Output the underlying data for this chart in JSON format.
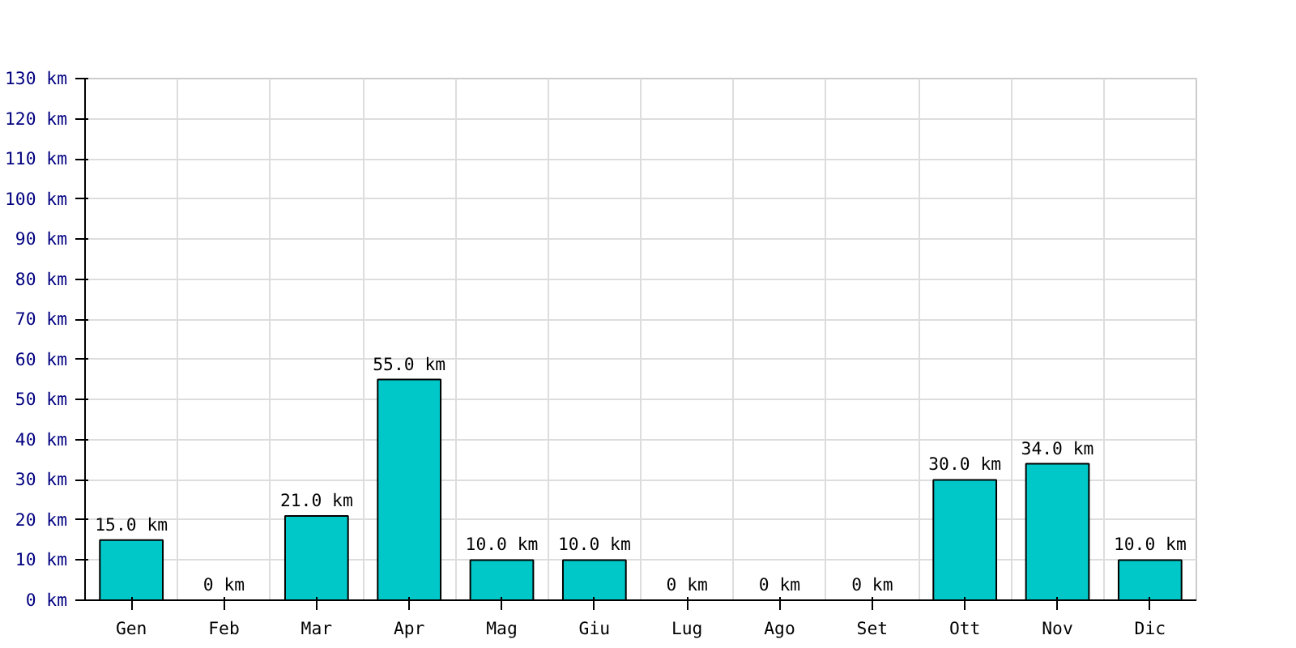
{
  "chart_data": {
    "type": "bar",
    "categories": [
      "Gen",
      "Feb",
      "Mar",
      "Apr",
      "Mag",
      "Giu",
      "Lug",
      "Ago",
      "Set",
      "Ott",
      "Nov",
      "Dic"
    ],
    "values": [
      15,
      0,
      21,
      55,
      10,
      10,
      0,
      0,
      0,
      30,
      34,
      10
    ],
    "value_labels": [
      "15.0 km",
      "0 km",
      "21.0 km",
      "55.0 km",
      "10.0 km",
      "10.0 km",
      "0 km",
      "0 km",
      "0 km",
      "30.0 km",
      "34.0 km",
      "10.0 km"
    ],
    "color": "#00c8c8",
    "ylim": [
      0,
      130
    ],
    "yticks": [
      {
        "value": 0,
        "label": "0 km"
      },
      {
        "value": 10,
        "label": "10 km"
      },
      {
        "value": 20,
        "label": "20 km"
      },
      {
        "value": 30,
        "label": "30 km"
      },
      {
        "value": 40,
        "label": "40 km"
      },
      {
        "value": 50,
        "label": "50 km"
      },
      {
        "value": 60,
        "label": "60 km"
      },
      {
        "value": 70,
        "label": "70 km"
      },
      {
        "value": 80,
        "label": "80 km"
      },
      {
        "value": 90,
        "label": "90 km"
      },
      {
        "value": 100,
        "label": "100 km"
      },
      {
        "value": 110,
        "label": "110 km"
      },
      {
        "value": 120,
        "label": "120 km"
      },
      {
        "value": 130,
        "label": "130 km"
      }
    ],
    "grid": true
  }
}
